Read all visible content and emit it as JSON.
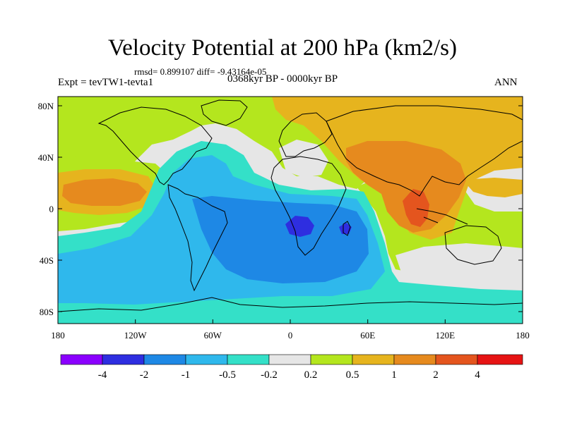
{
  "header": {
    "title": "Velocity Potential at 200 hPa (km2/s)",
    "stats": "rmsd= 0.899107 diff= -9.43164e-05",
    "expt": "Expt = tevTW1-tevta1",
    "period": "0368kyr BP - 0000kyr BP",
    "season": "ANN"
  },
  "map": {
    "lat_labels": [
      "80N",
      "40N",
      "0",
      "40S",
      "80S"
    ],
    "lon_labels": [
      "180",
      "120W",
      "60W",
      "0",
      "60E",
      "120E",
      "180"
    ]
  },
  "colorbar": {
    "labels": [
      "-4",
      "-2",
      "-1",
      "-0.5",
      "-0.2",
      "0.2",
      "0.5",
      "1",
      "2",
      "4"
    ],
    "colors": [
      "#8B00FF",
      "#2E2EE0",
      "#1E88E5",
      "#2FB8EC",
      "#34E0C8",
      "#E6E6E6",
      "#B4E61E",
      "#E6B41E",
      "#E68A1E",
      "#E4551E",
      "#E61414"
    ]
  }
}
